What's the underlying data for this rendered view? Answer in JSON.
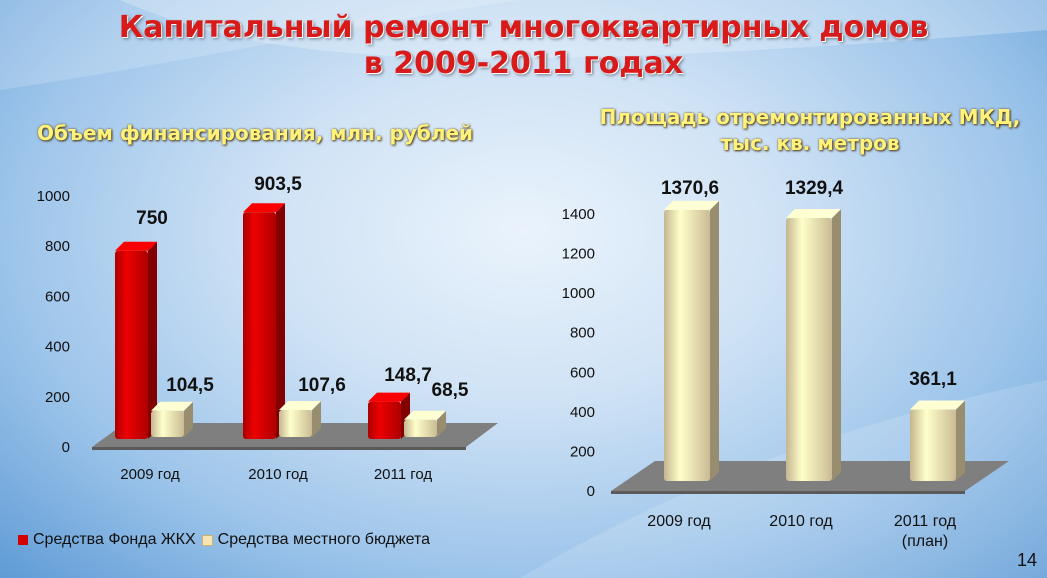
{
  "title_line1": "Капитальный ремонт многоквартирных домов",
  "title_line2": "в 2009-2011 годах",
  "page_number": "14",
  "colors": {
    "fund": "#d40000",
    "local": "#f6e4b4",
    "title": "#d81a1a",
    "subtitle": "#fff27a"
  },
  "chart_data": [
    {
      "type": "bar",
      "title": "Объем финансирования, млн. рублей",
      "categories": [
        "2009 год",
        "2010 год",
        "2011 год"
      ],
      "series": [
        {
          "name": "Средства Фонда ЖКХ",
          "values": [
            750,
            903.5,
            148.7
          ],
          "labels": [
            "750",
            "903,5",
            "148,7"
          ]
        },
        {
          "name": "Средства местного бюджета",
          "values": [
            104.5,
            107.6,
            68.5
          ],
          "labels": [
            "104,5",
            "107,6",
            "68,5"
          ]
        }
      ],
      "ylim": [
        0,
        1000
      ],
      "yticks": [
        "0",
        "200",
        "400",
        "600",
        "800",
        "1000"
      ],
      "legend": "bottom"
    },
    {
      "type": "bar",
      "title_line1": "Площадь отремонтированных МКД,",
      "title_line2": "тыс. кв. метров",
      "categories": [
        "2009 год",
        "2010 год",
        "2011 год"
      ],
      "category_notes": [
        "",
        "",
        "(план)"
      ],
      "series": [
        {
          "values": [
            1370.6,
            1329.4,
            361.1
          ],
          "labels": [
            "1370,6",
            "1329,4",
            "361,1"
          ]
        }
      ],
      "ylim": [
        0,
        1400
      ],
      "yticks": [
        "0",
        "200",
        "400",
        "600",
        "800",
        "1000",
        "1200",
        "1400"
      ]
    }
  ]
}
